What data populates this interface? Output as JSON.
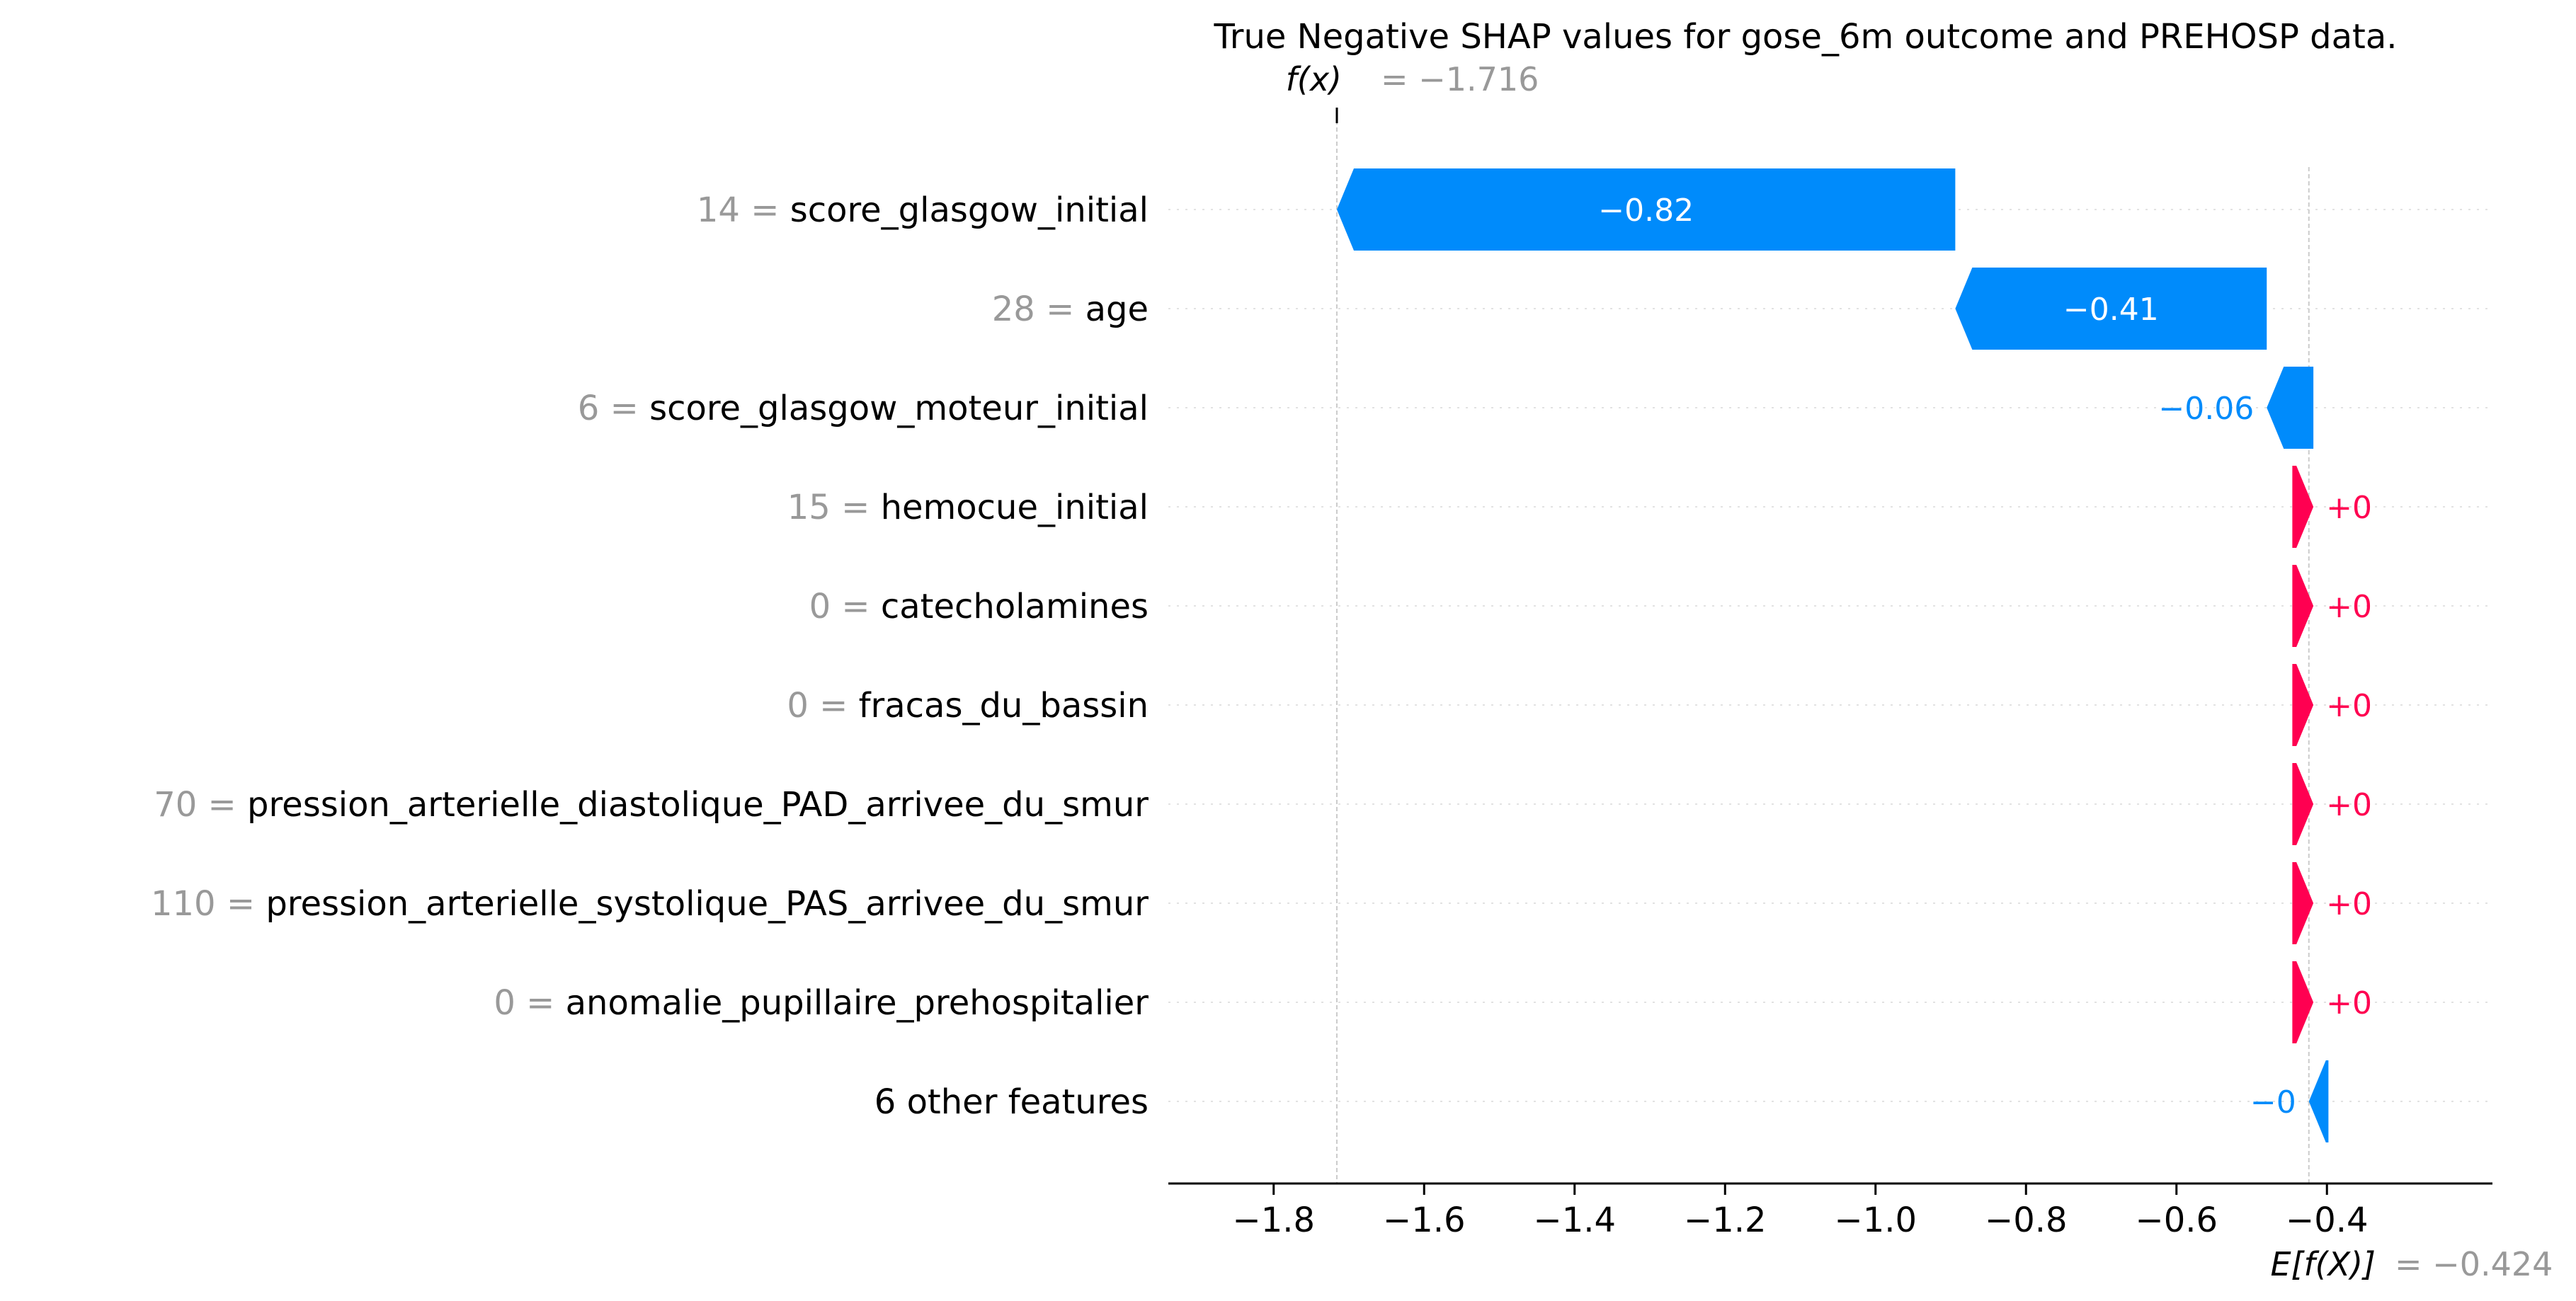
{
  "chart_data": {
    "type": "waterfall",
    "title": "True Negative SHAP values for gose_6m outcome and PREHOSP data.",
    "fx": {
      "label_prefix": "f(x)",
      "value_text": "= −1.716",
      "value": -1.716
    },
    "efx": {
      "label_prefix": "E[f(X)]",
      "value_text": "= −0.424",
      "value": -0.424
    },
    "xlim": [
      -1.94,
      -0.18
    ],
    "x_ticks": [
      {
        "value": -1.8,
        "label": "−1.8"
      },
      {
        "value": -1.6,
        "label": "−1.6"
      },
      {
        "value": -1.4,
        "label": "−1.4"
      },
      {
        "value": -1.2,
        "label": "−1.2"
      },
      {
        "value": -1.0,
        "label": "−1.0"
      },
      {
        "value": -0.8,
        "label": "−0.8"
      },
      {
        "value": -0.6,
        "label": "−0.6"
      },
      {
        "value": -0.4,
        "label": "−0.4"
      }
    ],
    "features": [
      {
        "feature_value": "14 =",
        "name": "score_glasgow_initial",
        "start": -0.894,
        "end": -1.716,
        "label": "−0.82",
        "sign": "negative",
        "label_inside": true
      },
      {
        "feature_value": "28 =",
        "name": "age",
        "start": -0.48,
        "end": -0.894,
        "label": "−0.41",
        "sign": "negative",
        "label_inside": true
      },
      {
        "feature_value": "6 =",
        "name": "score_glasgow_moteur_initial",
        "start": -0.418,
        "end": -0.48,
        "label": "−0.06",
        "sign": "negative",
        "label_inside": false
      },
      {
        "feature_value": "15 =",
        "name": "hemocue_initial",
        "start": -0.446,
        "end": -0.418,
        "label": "+0",
        "sign": "positive",
        "label_inside": false
      },
      {
        "feature_value": "0 =",
        "name": "catecholamines",
        "start": -0.446,
        "end": -0.418,
        "label": "+0",
        "sign": "positive",
        "label_inside": false
      },
      {
        "feature_value": "0 =",
        "name": "fracas_du_bassin",
        "start": -0.446,
        "end": -0.418,
        "label": "+0",
        "sign": "positive",
        "label_inside": false
      },
      {
        "feature_value": "70 =",
        "name": "pression_arterielle_diastolique_PAD_arrivee_du_smur",
        "start": -0.446,
        "end": -0.418,
        "label": "+0",
        "sign": "positive",
        "label_inside": false
      },
      {
        "feature_value": "110 =",
        "name": "pression_arterielle_systolique_PAS_arrivee_du_smur",
        "start": -0.446,
        "end": -0.418,
        "label": "+0",
        "sign": "positive",
        "label_inside": false
      },
      {
        "feature_value": "0 =",
        "name": "anomalie_pupillaire_prehospitalier",
        "start": -0.446,
        "end": -0.418,
        "label": "+0",
        "sign": "positive",
        "label_inside": false
      },
      {
        "feature_value": "",
        "name": "6 other features",
        "start": -0.398,
        "end": -0.424,
        "label": "−0",
        "sign": "negative",
        "label_inside": false
      }
    ],
    "colors": {
      "negative": "#008bfb",
      "positive": "#ff0051",
      "grey": "#999999",
      "text": "#000000",
      "dotted": "#cccccc"
    },
    "grid": false
  }
}
